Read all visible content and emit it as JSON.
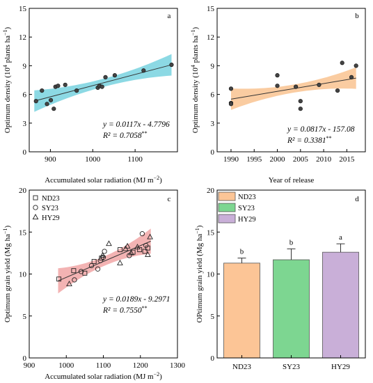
{
  "chart_data": [
    {
      "type": "scatter",
      "panel_label": "a",
      "xlabel": "Accumulated solar radiation (MJ m",
      "xlabel_sup": "−2",
      "xlabel_end": ")",
      "ylabel": "Optimum density (10",
      "ylabel_sup": "4",
      "ylabel_end": " plants ha",
      "ylabel_sup2": "−1",
      "ylabel_close": ")",
      "xlim": [
        850,
        1200
      ],
      "ylim": [
        0,
        15
      ],
      "xticks": [
        900,
        1000,
        1100
      ],
      "yticks": [
        0,
        3,
        6,
        9,
        12,
        15
      ],
      "points": [
        [
          866,
          5.3
        ],
        [
          880,
          6.4
        ],
        [
          892,
          5.0
        ],
        [
          901,
          5.4
        ],
        [
          908,
          4.5
        ],
        [
          912,
          6.8
        ],
        [
          918,
          6.9
        ],
        [
          935,
          7.0
        ],
        [
          962,
          6.4
        ],
        [
          1012,
          6.7
        ],
        [
          1016,
          6.9
        ],
        [
          1022,
          6.8
        ],
        [
          1030,
          7.8
        ],
        [
          1052,
          8.0
        ],
        [
          1120,
          8.5
        ],
        [
          1186,
          9.1
        ]
      ],
      "fit": {
        "slope": 0.0117,
        "intercept": -4.7796,
        "x_range": [
          862,
          1186
        ]
      },
      "band_color": "#6fd0dd",
      "equation_text": "y = 0.0117x - 4.7796",
      "r2_text": "R² = 0.7058",
      "sig": "**"
    },
    {
      "type": "scatter",
      "panel_label": "b",
      "xlabel": "Year of release",
      "ylabel": "Optimum density (10",
      "ylabel_sup": "4",
      "ylabel_end": " plants ha",
      "ylabel_sup2": "−1",
      "ylabel_close": ")",
      "xlim": [
        1987,
        2019
      ],
      "ylim": [
        0,
        15
      ],
      "xticks": [
        1990,
        1995,
        2000,
        2005,
        2010,
        2015
      ],
      "yticks": [
        0,
        3,
        6,
        9,
        12,
        15
      ],
      "points": [
        [
          1990,
          6.6
        ],
        [
          1990,
          5.1
        ],
        [
          1990,
          5.0
        ],
        [
          2000,
          8.0
        ],
        [
          2000,
          6.9
        ],
        [
          2004,
          6.8
        ],
        [
          2005,
          5.3
        ],
        [
          2005,
          4.5
        ],
        [
          2009,
          7.0
        ],
        [
          2013,
          6.4
        ],
        [
          2014,
          9.3
        ],
        [
          2016,
          7.8
        ],
        [
          2017,
          9.0
        ]
      ],
      "fit": {
        "slope": 0.0817,
        "intercept": -157.08,
        "x_range": [
          1990,
          2017
        ]
      },
      "band_color": "#f9bf8a",
      "equation_text": "y = 0.0817x - 157.08",
      "r2_text": "R² = 0.3381",
      "sig": "**"
    },
    {
      "type": "scatter",
      "panel_label": "c",
      "xlabel": "Accumulated solar radiation (MJ m",
      "xlabel_sup": "−2",
      "xlabel_end": ")",
      "ylabel": "Optimum grain yield (Mg ha",
      "ylabel_sup": "−1",
      "ylabel_end": ")",
      "xlim": [
        900,
        1300
      ],
      "ylim": [
        0,
        20
      ],
      "xticks": [
        900,
        1000,
        1100,
        1200,
        1300
      ],
      "yticks": [
        0,
        5,
        10,
        15,
        20
      ],
      "series": [
        {
          "name": "ND23",
          "marker": "square",
          "points": [
            [
              980,
              9.4
            ],
            [
              1020,
              10.4
            ],
            [
              1050,
              10.1
            ],
            [
              1075,
              11.5
            ],
            [
              1095,
              11.9
            ],
            [
              1145,
              12.9
            ],
            [
              1180,
              12.6
            ],
            [
              1198,
              12.9
            ],
            [
              1212,
              12.7
            ],
            [
              1220,
              13.1
            ]
          ]
        },
        {
          "name": "SY23",
          "marker": "circle",
          "points": [
            [
              1022,
              9.3
            ],
            [
              1040,
              10.3
            ],
            [
              1068,
              11.0
            ],
            [
              1085,
              10.6
            ],
            [
              1092,
              11.6
            ],
            [
              1100,
              12.0
            ],
            [
              1103,
              12.7
            ],
            [
              1170,
              12.2
            ],
            [
              1205,
              14.8
            ],
            [
              1215,
              13.4
            ]
          ]
        },
        {
          "name": "HY29",
          "marker": "triangle",
          "points": [
            [
              1008,
              8.8
            ],
            [
              1098,
              12.2
            ],
            [
              1115,
              13.6
            ],
            [
              1145,
              11.3
            ],
            [
              1160,
              13.0
            ],
            [
              1165,
              13.3
            ],
            [
              1175,
              12.5
            ],
            [
              1192,
              13.2
            ],
            [
              1220,
              12.3
            ],
            [
              1226,
              14.4
            ]
          ]
        }
      ],
      "fit": {
        "slope": 0.0189,
        "intercept": -9.2971,
        "x_range": [
          978,
          1228
        ]
      },
      "band_color": "#f0a0a0",
      "equation_text": "y = 0.0189x - 9.2971",
      "r2_text": "R² = 0.7550",
      "sig": "**"
    },
    {
      "type": "bar",
      "panel_label": "d",
      "ylabel": "OPtimum grain yield (Mg ha",
      "ylabel_sup": "−1",
      "ylabel_end": ")",
      "ylim": [
        0,
        20
      ],
      "yticks": [
        0,
        5,
        10,
        15,
        20
      ],
      "categories": [
        "ND23",
        "SY23",
        "HY29"
      ],
      "values": [
        11.3,
        11.7,
        12.6
      ],
      "errors": [
        0.6,
        1.3,
        1.0
      ],
      "letters": [
        "b",
        "b",
        "a"
      ],
      "colors": [
        "#fcc596",
        "#7dd691",
        "#c9afd8"
      ]
    }
  ]
}
